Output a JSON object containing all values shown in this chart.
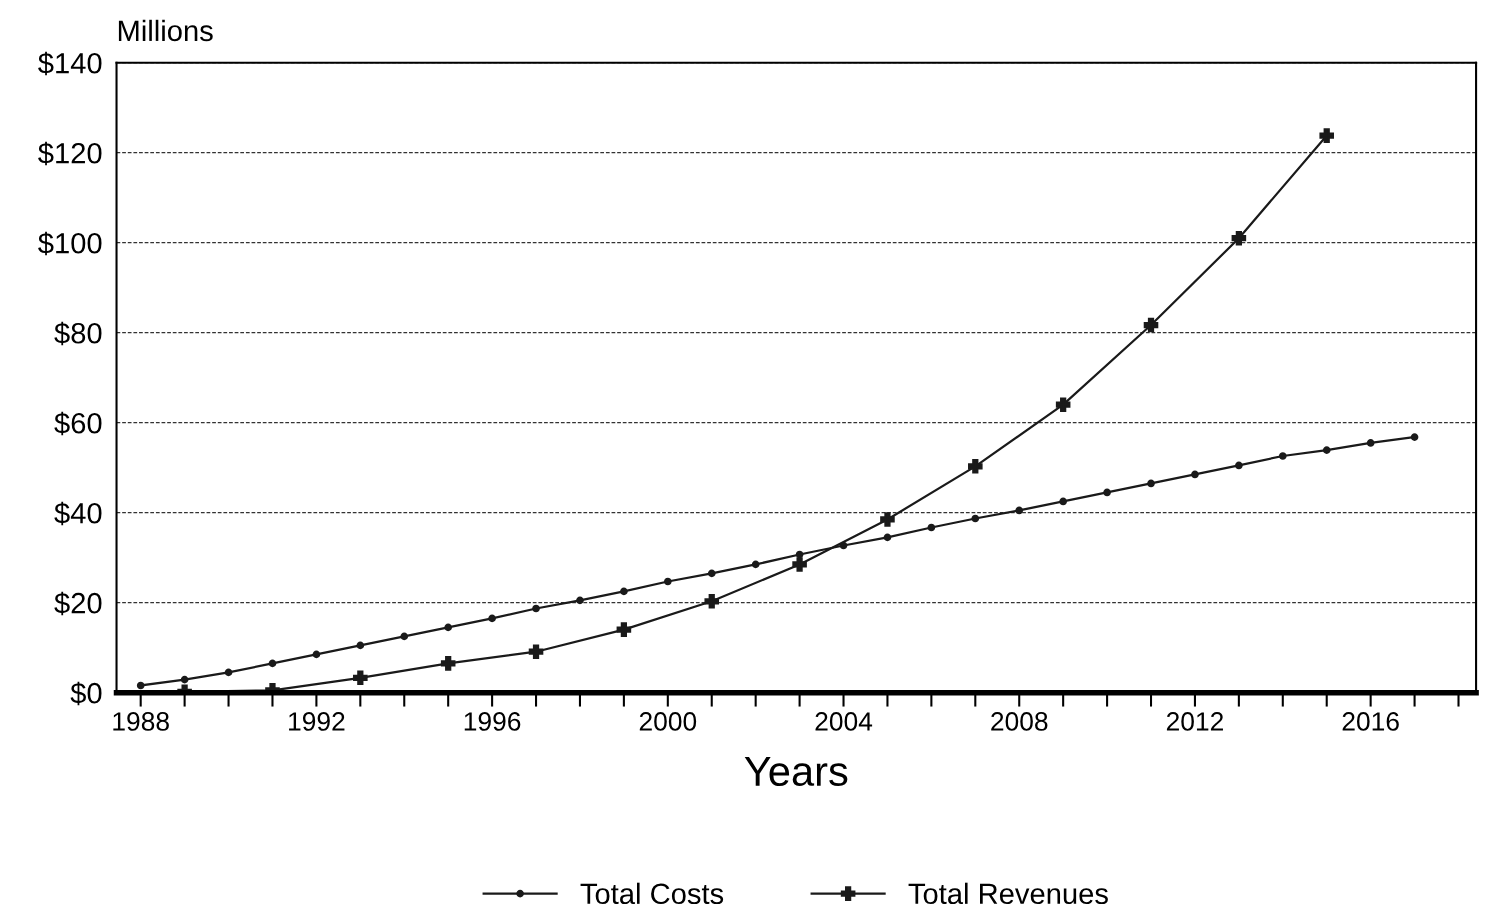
{
  "chart_data": {
    "type": "line",
    "ylabel": "Millions",
    "xlabel": "Years",
    "xlim": [
      1987.45,
      2018.4
    ],
    "ylim": [
      0,
      140
    ],
    "xticks": [
      1988,
      {
        "value": 1989,
        "label": null
      },
      {
        "value": 1990,
        "label": null
      },
      {
        "value": 1991,
        "label": null
      },
      1992,
      {
        "value": 1993,
        "label": null
      },
      {
        "value": 1994,
        "label": null
      },
      {
        "value": 1995,
        "label": null
      },
      1996,
      {
        "value": 1997,
        "label": null
      },
      {
        "value": 1998,
        "label": null
      },
      {
        "value": 1999,
        "label": null
      },
      2000,
      {
        "value": 2001,
        "label": null
      },
      {
        "value": 2002,
        "label": null
      },
      {
        "value": 2003,
        "label": null
      },
      2004,
      {
        "value": 2005,
        "label": null
      },
      {
        "value": 2006,
        "label": null
      },
      {
        "value": 2007,
        "label": null
      },
      2008,
      {
        "value": 2009,
        "label": null
      },
      {
        "value": 2010,
        "label": null
      },
      {
        "value": 2011,
        "label": null
      },
      2012,
      {
        "value": 2013,
        "label": null
      },
      {
        "value": 2014,
        "label": null
      },
      {
        "value": 2015,
        "label": null
      },
      2016,
      {
        "value": 2017,
        "label": null
      },
      {
        "value": 2018,
        "label": null
      }
    ],
    "yticks": [
      {
        "value": 0,
        "label": "$0"
      },
      {
        "value": 20,
        "label": "$20"
      },
      {
        "value": 40,
        "label": "$40"
      },
      {
        "value": 60,
        "label": "$60"
      },
      {
        "value": 80,
        "label": "$80"
      },
      {
        "value": 100,
        "label": "$100"
      },
      {
        "value": 120,
        "label": "$120"
      },
      {
        "value": 140,
        "label": "$140"
      }
    ],
    "grid": "y",
    "legend": "bottom",
    "line_style": "solid",
    "series": [
      {
        "name": "Total Costs",
        "color": "#1a1a1a",
        "marker": "circle",
        "x": [
          1988,
          1989,
          1990,
          1991,
          1992,
          1993,
          1994,
          1995,
          1996,
          1997,
          1998,
          1999,
          2000,
          2001,
          2002,
          2003,
          2004,
          2005,
          2006,
          2007,
          2008,
          2009,
          2010,
          2011,
          2012,
          2013,
          2014,
          2015,
          2016,
          2017
        ],
        "values": [
          1.6,
          2.9,
          4.5,
          6.5,
          8.5,
          10.5,
          12.5,
          14.5,
          16.5,
          18.7,
          20.5,
          22.5,
          24.7,
          26.5,
          28.5,
          30.7,
          32.7,
          34.5,
          36.7,
          38.7,
          40.5,
          42.5,
          44.5,
          46.5,
          48.5,
          50.5,
          52.6,
          53.9,
          55.5,
          56.8
        ]
      },
      {
        "name": "Total Revenues",
        "color": "#1a1a1a",
        "marker": "cross",
        "x": [
          1989,
          1991,
          1993,
          1995,
          1997,
          1999,
          2001,
          2003,
          2005,
          2007,
          2009,
          2011,
          2013,
          2015
        ],
        "values": [
          0.2,
          0.5,
          3.3,
          6.5,
          9.1,
          14,
          20.3,
          28.5,
          38.5,
          50.3,
          64,
          81.7,
          101,
          123.8
        ]
      }
    ]
  }
}
